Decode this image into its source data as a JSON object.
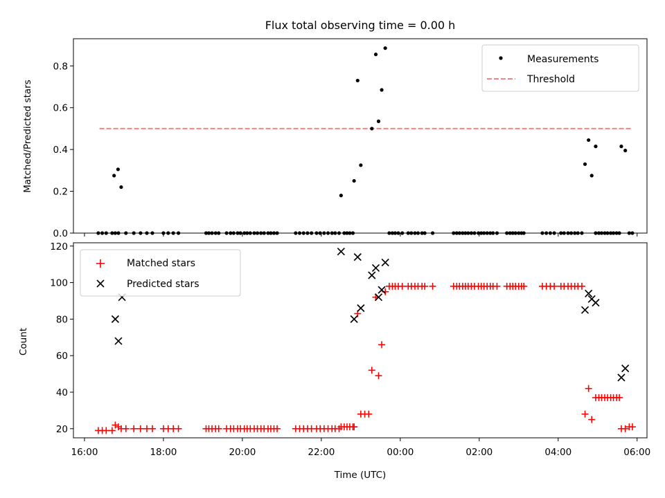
{
  "figure": {
    "title": "Flux total observing time = 0.00 h"
  },
  "chart_data": [
    {
      "type": "scatter",
      "ylabel": "Matched/Predicted stars",
      "xlabel": "",
      "xlim_hours": [
        15.72,
        30.25
      ],
      "ylim": [
        0,
        0.93
      ],
      "yticks": [
        0.0,
        0.2,
        0.4,
        0.6,
        0.8
      ],
      "ytick_labels": [
        "0.0",
        "0.2",
        "0.4",
        "0.6",
        "0.8"
      ],
      "legend": {
        "placement": "top-right"
      },
      "grid": false,
      "series": [
        {
          "name": "Measurements",
          "marker": "dot",
          "color": "#000000",
          "x_hours": [
            16.75,
            16.85,
            16.93,
            22.5,
            22.83,
            22.92,
            23.0,
            23.28,
            23.38,
            23.45,
            23.53,
            23.62,
            28.68,
            28.77,
            28.85,
            28.95,
            29.6,
            29.7
          ],
          "y": [
            0.275,
            0.305,
            0.22,
            0.18,
            0.25,
            0.73,
            0.325,
            0.5,
            0.855,
            0.535,
            0.685,
            0.885,
            0.33,
            0.445,
            0.275,
            0.415,
            0.415,
            0.395
          ]
        },
        {
          "name": "Measurements",
          "marker": "dot",
          "color": "#000000",
          "y_constant": 0,
          "x_hours": [
            16.35,
            16.45,
            16.55,
            16.7,
            16.78,
            16.86,
            17.05,
            17.25,
            17.42,
            17.58,
            17.72,
            18.0,
            18.12,
            18.25,
            18.38,
            19.08,
            19.15,
            19.23,
            19.32,
            19.4,
            19.6,
            19.7,
            19.78,
            19.88,
            19.95,
            20.05,
            20.12,
            20.2,
            20.3,
            20.38,
            20.47,
            20.55,
            20.65,
            20.72,
            20.8,
            20.88,
            21.35,
            21.45,
            21.55,
            21.65,
            21.75,
            21.88,
            21.97,
            22.07,
            22.17,
            22.27,
            22.35,
            22.45,
            22.58,
            22.65,
            22.72,
            22.8,
            23.72,
            23.8,
            23.87,
            23.95,
            24.05,
            24.2,
            24.28,
            24.37,
            24.45,
            24.55,
            24.62,
            24.82,
            25.35,
            25.43,
            25.5,
            25.58,
            25.65,
            25.72,
            25.8,
            25.88,
            25.98,
            26.05,
            26.12,
            26.2,
            26.28,
            26.35,
            26.45,
            26.7,
            26.78,
            26.85,
            26.92,
            27.0,
            27.07,
            27.13,
            27.6,
            27.7,
            27.8,
            27.9,
            28.07,
            28.15,
            28.25,
            28.33,
            28.42,
            28.5,
            28.6,
            28.95,
            29.03,
            29.1,
            29.18,
            29.25,
            29.33,
            29.4,
            29.48,
            29.55,
            29.8,
            29.88
          ],
          "y": []
        },
        {
          "name": "Threshold",
          "style": "dashed",
          "color": "#ff7f7f",
          "x_hours": [
            16.38,
            29.85
          ],
          "y": [
            0.5,
            0.5
          ]
        }
      ]
    },
    {
      "type": "scatter",
      "xlabel": "Time (UTC)",
      "ylabel": "Count",
      "xlim_hours": [
        15.72,
        30.25
      ],
      "ylim": [
        15,
        121.8
      ],
      "yticks": [
        20,
        40,
        60,
        80,
        100,
        120
      ],
      "ytick_labels": [
        "20",
        "40",
        "60",
        "80",
        "100",
        "120"
      ],
      "xticks_hours": [
        16,
        18,
        20,
        22,
        24,
        26,
        28,
        30
      ],
      "xtick_labels": [
        "16:00",
        "18:00",
        "20:00",
        "22:00",
        "00:00",
        "02:00",
        "04:00",
        "06:00"
      ],
      "legend": {
        "placement": "top-left"
      },
      "grid": false,
      "series": [
        {
          "name": "Matched stars",
          "marker": "plus",
          "color": "#ff0000",
          "x_hours": [
            16.35,
            16.45,
            16.55,
            16.7,
            16.78,
            16.86,
            16.93,
            17.05,
            17.25,
            17.42,
            17.58,
            17.72,
            18.0,
            18.12,
            18.25,
            18.38,
            19.08,
            19.15,
            19.23,
            19.32,
            19.4,
            19.6,
            19.7,
            19.78,
            19.88,
            19.95,
            20.05,
            20.12,
            20.2,
            20.3,
            20.38,
            20.47,
            20.55,
            20.65,
            20.72,
            20.8,
            20.88,
            21.35,
            21.45,
            21.55,
            21.65,
            21.75,
            21.88,
            21.97,
            22.07,
            22.17,
            22.27,
            22.35,
            22.45,
            22.5,
            22.58,
            22.65,
            22.72,
            22.8,
            22.83,
            22.92,
            23.0,
            23.1,
            23.2,
            23.28,
            23.38,
            23.45,
            23.53,
            23.62,
            23.72,
            23.8,
            23.87,
            23.95,
            24.05,
            24.2,
            24.28,
            24.37,
            24.45,
            24.55,
            24.62,
            24.82,
            25.35,
            25.43,
            25.5,
            25.58,
            25.65,
            25.72,
            25.8,
            25.88,
            25.98,
            26.05,
            26.12,
            26.2,
            26.28,
            26.35,
            26.45,
            26.7,
            26.78,
            26.85,
            26.92,
            27.0,
            27.07,
            27.13,
            27.6,
            27.7,
            27.8,
            27.9,
            28.07,
            28.15,
            28.25,
            28.33,
            28.42,
            28.5,
            28.6,
            28.68,
            28.77,
            28.85,
            28.95,
            29.03,
            29.1,
            29.18,
            29.25,
            29.33,
            29.4,
            29.48,
            29.55,
            29.6,
            29.7,
            29.8,
            29.88
          ],
          "y": [
            19,
            19,
            19,
            19,
            22,
            21,
            20,
            20,
            20,
            20,
            20,
            20,
            20,
            20,
            20,
            20,
            20,
            20,
            20,
            20,
            20,
            20,
            20,
            20,
            20,
            20,
            20,
            20,
            20,
            20,
            20,
            20,
            20,
            20,
            20,
            20,
            20,
            20,
            20,
            20,
            20,
            20,
            20,
            20,
            20,
            20,
            20,
            20,
            20,
            21,
            21,
            21,
            21,
            21,
            21,
            83,
            28,
            28,
            28,
            52,
            92,
            49,
            66,
            95,
            98,
            98,
            98,
            98,
            98,
            98,
            98,
            98,
            98,
            98,
            98,
            98,
            98,
            98,
            98,
            98,
            98,
            98,
            98,
            98,
            98,
            98,
            98,
            98,
            98,
            98,
            98,
            98,
            98,
            98,
            98,
            98,
            98,
            98,
            98,
            98,
            98,
            98,
            98,
            98,
            98,
            98,
            98,
            98,
            98,
            28,
            42,
            25,
            37,
            37,
            37,
            37,
            37,
            37,
            37,
            37,
            37,
            20,
            20,
            21,
            21
          ]
        },
        {
          "name": "Predicted stars",
          "marker": "x",
          "color": "#000000",
          "x_hours": [
            16.78,
            16.86,
            16.95,
            22.5,
            22.83,
            22.92,
            23.0,
            23.28,
            23.38,
            23.45,
            23.53,
            23.62,
            28.68,
            28.77,
            28.85,
            28.95,
            29.6,
            29.7
          ],
          "y": [
            80,
            68,
            92,
            117,
            80,
            114,
            86,
            104,
            108,
            92,
            96,
            111,
            85,
            94,
            91,
            89,
            48,
            53
          ]
        }
      ]
    }
  ]
}
